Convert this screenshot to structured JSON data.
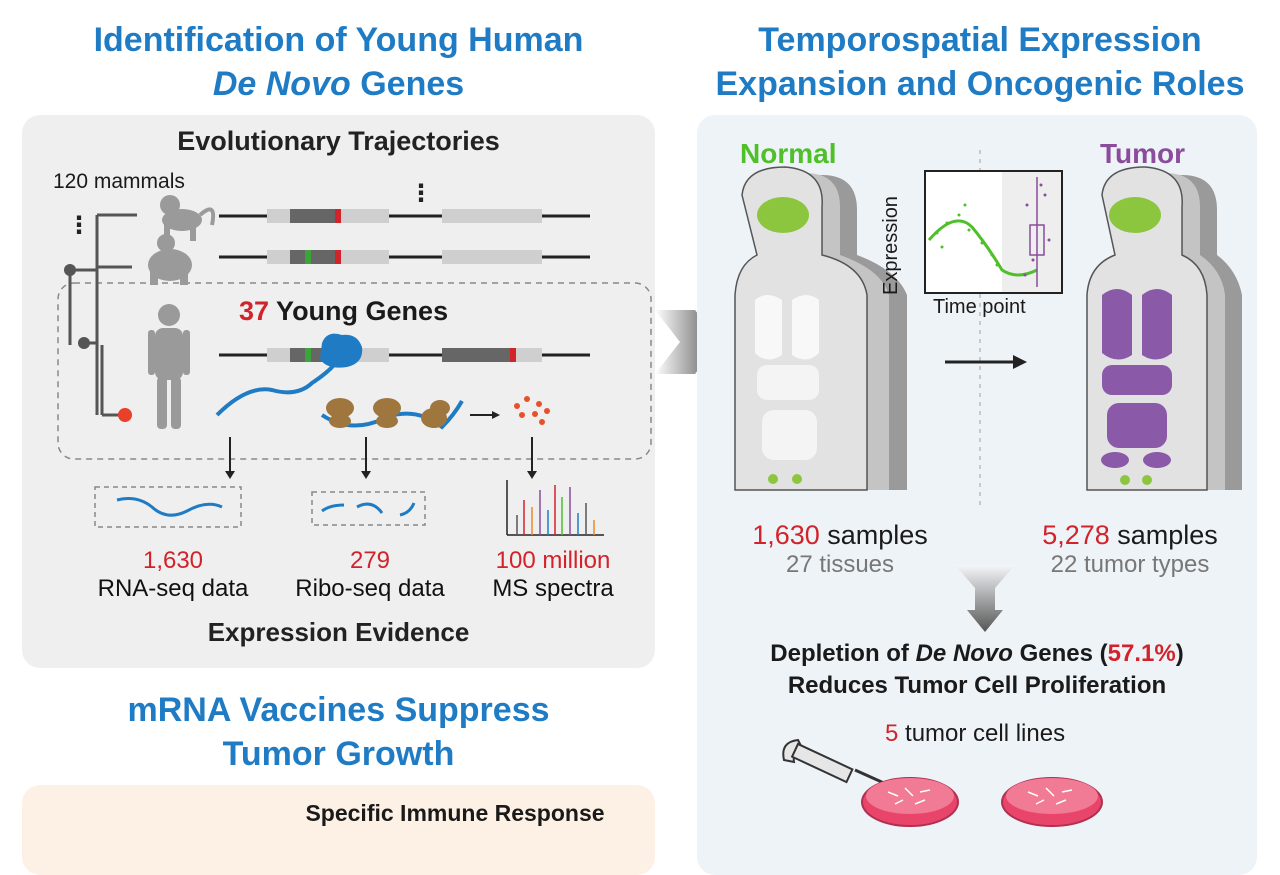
{
  "left": {
    "title_line1": "Identification of Young Human",
    "title_line2_italic": "De Novo",
    "title_line2_rest": " Genes",
    "panel_header": "Evolutionary Trajectories",
    "mammals_label": "120 mammals",
    "young_genes_count": "37",
    "young_genes_label": " Young Genes",
    "evidence": [
      {
        "number": "1,630",
        "label": "RNA-seq data"
      },
      {
        "number": "279",
        "label": "Ribo-seq data"
      },
      {
        "number": "100 million",
        "label": "MS spectra"
      }
    ],
    "evidence_header": "Expression Evidence"
  },
  "vaccine": {
    "title_line1": "mRNA Vaccines Suppress",
    "title_line2": "Tumor Growth",
    "panel_header": "Specific Immune Response"
  },
  "right": {
    "title_line1": "Temporospatial Expression",
    "title_line2": "Expansion and Oncogenic Roles",
    "normal_label": "Normal",
    "tumor_label": "Tumor",
    "plot_ylabel": "Expression",
    "plot_xlabel": "Time point",
    "normal_samples_num": "1,630",
    "normal_samples_word": " samples",
    "normal_tissues": "27 tissues",
    "tumor_samples_num": "5,278",
    "tumor_samples_word": " samples",
    "tumor_types": "22 tumor types",
    "depletion_pre": "Depletion of ",
    "depletion_italic": "De Novo",
    "depletion_mid": " Genes (",
    "depletion_pct": "57.1%",
    "depletion_post": ")",
    "depletion_line2": "Reduces Tumor Cell Proliferation",
    "cell_lines_num": "5",
    "cell_lines_label": " tumor cell lines"
  },
  "colors": {
    "title_blue": "#1f7cc4",
    "highlight_red": "#d2232a",
    "normal_green": "#4fbf2a",
    "tumor_purple": "#8a4d9c",
    "transcript_blue": "#1f7cc4",
    "ribosome_brown": "#a0763f"
  }
}
